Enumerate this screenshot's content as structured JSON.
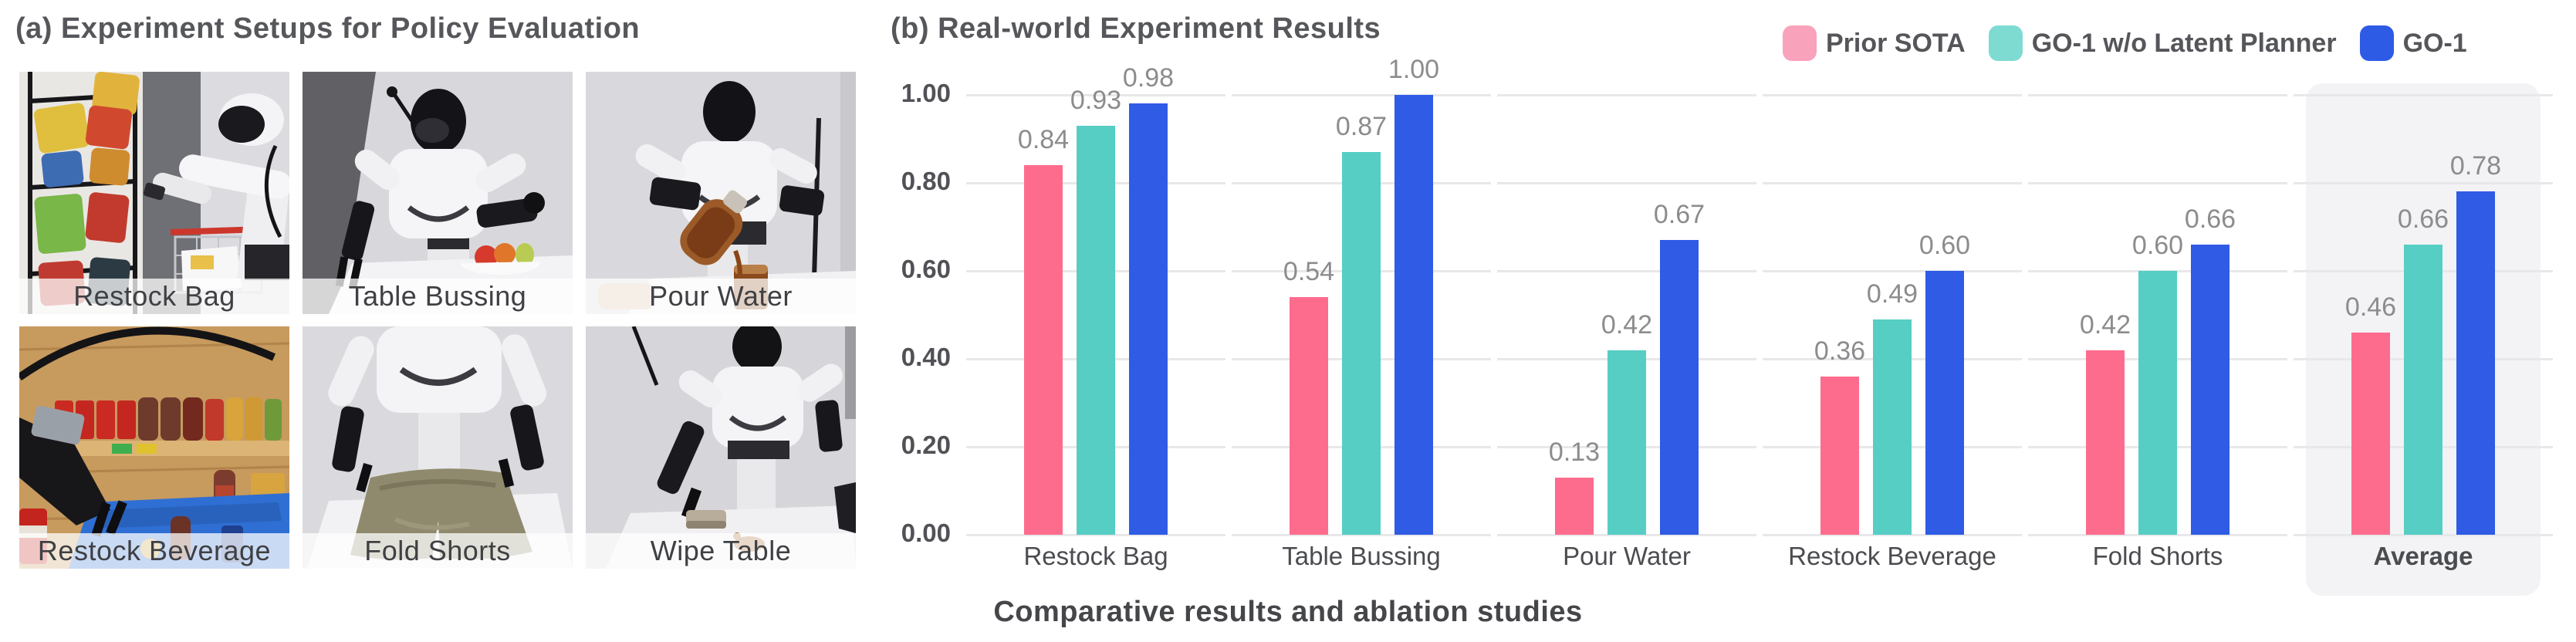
{
  "panel_a": {
    "title": "(a) Experiment Setups for Policy Evaluation",
    "photos": [
      {
        "label": "Restock Bag"
      },
      {
        "label": "Table Bussing"
      },
      {
        "label": "Pour Water"
      },
      {
        "label": "Restock Beverage"
      },
      {
        "label": "Fold Shorts"
      },
      {
        "label": "Wipe Table"
      }
    ]
  },
  "panel_b": {
    "title": "(b) Real-world Experiment Results",
    "legend": [
      {
        "label": "Prior SOTA",
        "swatch_color": "#F9A2BB"
      },
      {
        "label": "GO-1 w/o Latent Planner",
        "swatch_color": "#7EDBD2"
      },
      {
        "label": "GO-1",
        "swatch_color": "#2E5BE6"
      }
    ],
    "caption": "Comparative results and ablation studies"
  },
  "chart_data": {
    "type": "bar",
    "title": "(b) Real-world Experiment Results",
    "categories": [
      "Restock Bag",
      "Table Bussing",
      "Pour Water",
      "Restock Beverage",
      "Fold Shorts",
      "Average"
    ],
    "series": [
      {
        "name": "Prior SOTA",
        "color": "#FD6C8D",
        "values": [
          0.84,
          0.54,
          0.13,
          0.36,
          0.42,
          0.46
        ]
      },
      {
        "name": "GO-1 w/o Latent Planner",
        "color": "#56CEC4",
        "values": [
          0.93,
          0.87,
          0.42,
          0.49,
          0.6,
          0.66
        ]
      },
      {
        "name": "GO-1",
        "color": "#2F5BE5",
        "values": [
          0.98,
          1.0,
          0.67,
          0.6,
          0.66,
          0.78
        ]
      }
    ],
    "yticks": [
      "0.00",
      "0.20",
      "0.40",
      "0.60",
      "0.80",
      "1.00"
    ],
    "ylim": [
      0,
      1.0
    ],
    "grid": true,
    "grid_color": "#E8E8EA",
    "legend_position": "top-right",
    "highlighted_category": "Average",
    "highlight_color": "#F3F3F5",
    "value_label_format": "2-decimals",
    "caption": "Comparative results and ablation studies"
  }
}
